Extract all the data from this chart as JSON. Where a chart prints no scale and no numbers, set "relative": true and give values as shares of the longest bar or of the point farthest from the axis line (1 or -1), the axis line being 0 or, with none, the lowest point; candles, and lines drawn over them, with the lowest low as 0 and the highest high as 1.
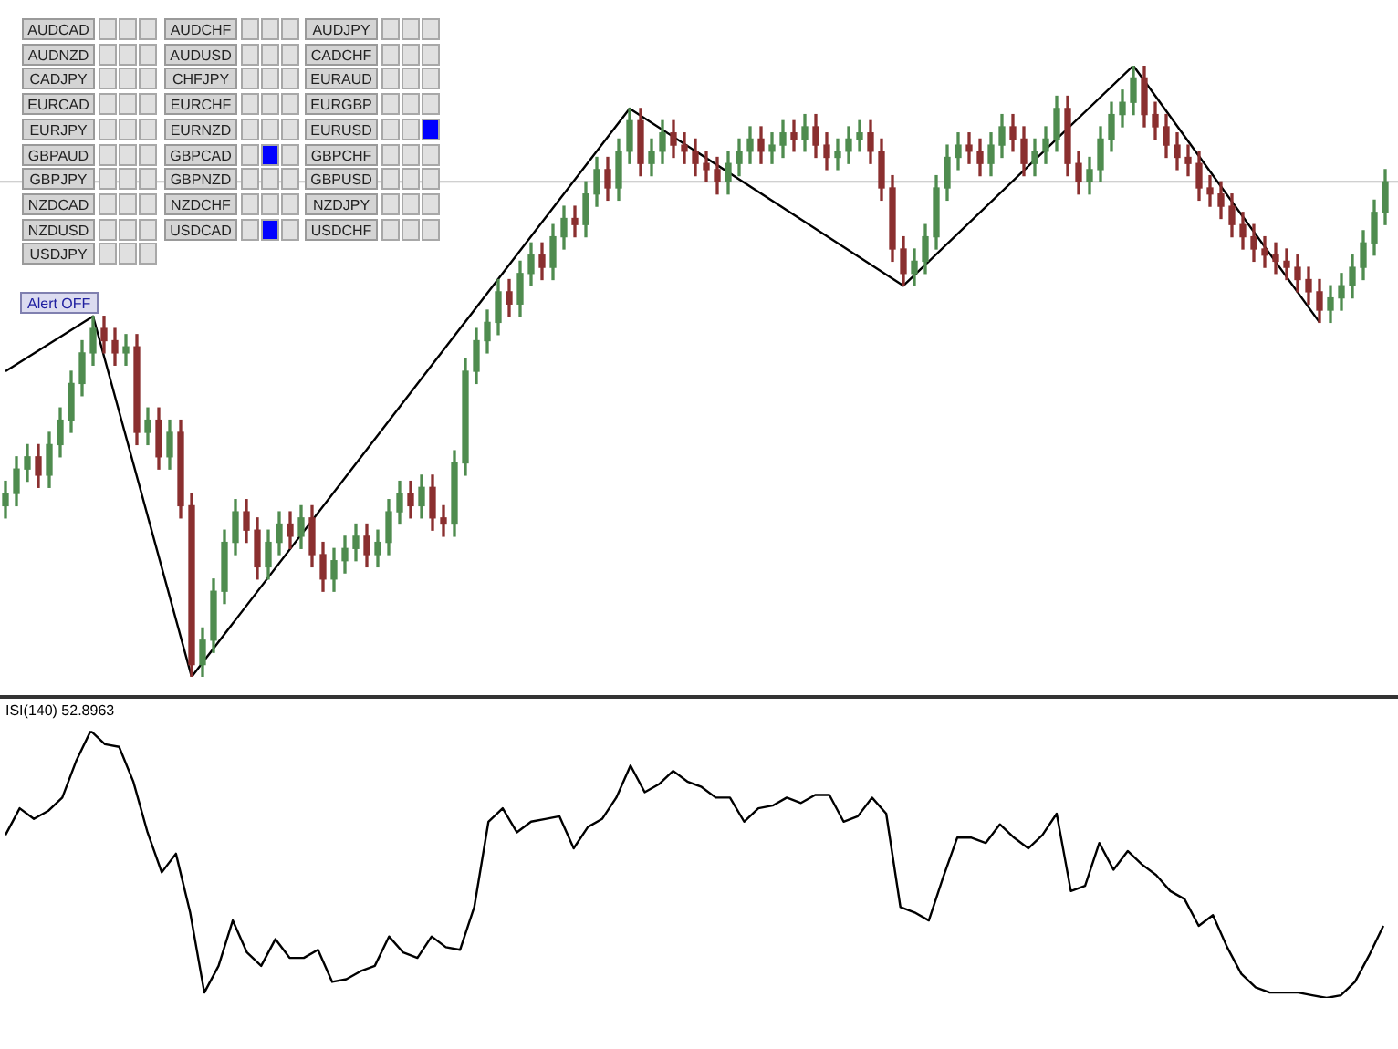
{
  "chart_data": [
    {
      "type": "candlestick",
      "relative": true,
      "categories": [
        null,
        null,
        null,
        null,
        null,
        null,
        null,
        null,
        null,
        null,
        null,
        null,
        null,
        null,
        null,
        null,
        null,
        null,
        null,
        null,
        null,
        null,
        null,
        null,
        null,
        null,
        null,
        null,
        null,
        null,
        null,
        null,
        null,
        null,
        null,
        null,
        null,
        null,
        null,
        null,
        null,
        null,
        null,
        null,
        null,
        null,
        null,
        null,
        null,
        null,
        null,
        null,
        null,
        null,
        null,
        null,
        null,
        null,
        null,
        null,
        null,
        null,
        null,
        null,
        null,
        null,
        null,
        null,
        null,
        null,
        null,
        null,
        null,
        null,
        null,
        null,
        null,
        null,
        null,
        null,
        null,
        null,
        null,
        null,
        null,
        null,
        null,
        null,
        null,
        null,
        null,
        null,
        null,
        null,
        null,
        null,
        null,
        null,
        null,
        null,
        null,
        null,
        null,
        null,
        null,
        null,
        null,
        null,
        null,
        null,
        null,
        null,
        null,
        null,
        null,
        null,
        null,
        null,
        null,
        null,
        null,
        null,
        null,
        null,
        null,
        null,
        null
      ],
      "ohlc": [
        [
          0.28,
          0.32,
          0.26,
          0.3
        ],
        [
          0.3,
          0.36,
          0.28,
          0.34
        ],
        [
          0.34,
          0.38,
          0.32,
          0.36
        ],
        [
          0.36,
          0.38,
          0.31,
          0.33
        ],
        [
          0.33,
          0.4,
          0.31,
          0.38
        ],
        [
          0.38,
          0.44,
          0.36,
          0.42
        ],
        [
          0.42,
          0.5,
          0.4,
          0.48
        ],
        [
          0.48,
          0.55,
          0.46,
          0.53
        ],
        [
          0.53,
          0.59,
          0.51,
          0.57
        ],
        [
          0.57,
          0.59,
          0.53,
          0.55
        ],
        [
          0.55,
          0.57,
          0.51,
          0.53
        ],
        [
          0.53,
          0.56,
          0.51,
          0.54
        ],
        [
          0.54,
          0.56,
          0.38,
          0.4
        ],
        [
          0.4,
          0.44,
          0.38,
          0.42
        ],
        [
          0.42,
          0.44,
          0.34,
          0.36
        ],
        [
          0.36,
          0.42,
          0.34,
          0.4
        ],
        [
          0.4,
          0.42,
          0.26,
          0.28
        ],
        [
          0.28,
          0.3,
          0.0,
          0.02
        ],
        [
          0.02,
          0.08,
          0.0,
          0.06
        ],
        [
          0.06,
          0.16,
          0.04,
          0.14
        ],
        [
          0.14,
          0.24,
          0.12,
          0.22
        ],
        [
          0.22,
          0.29,
          0.2,
          0.27
        ],
        [
          0.27,
          0.29,
          0.22,
          0.24
        ],
        [
          0.24,
          0.26,
          0.16,
          0.18
        ],
        [
          0.18,
          0.24,
          0.16,
          0.22
        ],
        [
          0.22,
          0.27,
          0.2,
          0.25
        ],
        [
          0.25,
          0.27,
          0.21,
          0.23
        ],
        [
          0.23,
          0.28,
          0.21,
          0.26
        ],
        [
          0.26,
          0.28,
          0.18,
          0.2
        ],
        [
          0.2,
          0.22,
          0.14,
          0.16
        ],
        [
          0.16,
          0.21,
          0.14,
          0.19
        ],
        [
          0.19,
          0.23,
          0.17,
          0.21
        ],
        [
          0.21,
          0.25,
          0.19,
          0.23
        ],
        [
          0.23,
          0.25,
          0.18,
          0.2
        ],
        [
          0.2,
          0.24,
          0.18,
          0.22
        ],
        [
          0.22,
          0.29,
          0.2,
          0.27
        ],
        [
          0.27,
          0.32,
          0.25,
          0.3
        ],
        [
          0.3,
          0.32,
          0.26,
          0.28
        ],
        [
          0.28,
          0.33,
          0.26,
          0.31
        ],
        [
          0.31,
          0.33,
          0.24,
          0.26
        ],
        [
          0.26,
          0.28,
          0.23,
          0.25
        ],
        [
          0.25,
          0.37,
          0.23,
          0.35
        ],
        [
          0.35,
          0.52,
          0.33,
          0.5
        ],
        [
          0.5,
          0.57,
          0.48,
          0.55
        ],
        [
          0.55,
          0.6,
          0.53,
          0.58
        ],
        [
          0.58,
          0.65,
          0.56,
          0.63
        ],
        [
          0.63,
          0.65,
          0.59,
          0.61
        ],
        [
          0.61,
          0.68,
          0.59,
          0.66
        ],
        [
          0.66,
          0.71,
          0.64,
          0.69
        ],
        [
          0.69,
          0.71,
          0.65,
          0.67
        ],
        [
          0.67,
          0.74,
          0.65,
          0.72
        ],
        [
          0.72,
          0.77,
          0.7,
          0.75
        ],
        [
          0.75,
          0.77,
          0.72,
          0.74
        ],
        [
          0.74,
          0.81,
          0.72,
          0.79
        ],
        [
          0.79,
          0.85,
          0.77,
          0.83
        ],
        [
          0.83,
          0.85,
          0.78,
          0.8
        ],
        [
          0.8,
          0.88,
          0.78,
          0.86
        ],
        [
          0.86,
          0.93,
          0.84,
          0.91
        ],
        [
          0.91,
          0.93,
          0.82,
          0.84
        ],
        [
          0.84,
          0.88,
          0.82,
          0.86
        ],
        [
          0.86,
          0.91,
          0.84,
          0.89
        ],
        [
          0.89,
          0.91,
          0.85,
          0.87
        ],
        [
          0.87,
          0.89,
          0.84,
          0.86
        ],
        [
          0.86,
          0.88,
          0.82,
          0.84
        ],
        [
          0.84,
          0.86,
          0.81,
          0.83
        ],
        [
          0.83,
          0.85,
          0.79,
          0.81
        ],
        [
          0.81,
          0.86,
          0.79,
          0.84
        ],
        [
          0.84,
          0.88,
          0.82,
          0.86
        ],
        [
          0.86,
          0.9,
          0.84,
          0.88
        ],
        [
          0.88,
          0.9,
          0.84,
          0.86
        ],
        [
          0.86,
          0.89,
          0.84,
          0.87
        ],
        [
          0.87,
          0.91,
          0.85,
          0.89
        ],
        [
          0.89,
          0.91,
          0.86,
          0.88
        ],
        [
          0.88,
          0.92,
          0.86,
          0.9
        ],
        [
          0.9,
          0.92,
          0.85,
          0.87
        ],
        [
          0.87,
          0.89,
          0.83,
          0.85
        ],
        [
          0.85,
          0.88,
          0.83,
          0.86
        ],
        [
          0.86,
          0.9,
          0.84,
          0.88
        ],
        [
          0.88,
          0.91,
          0.86,
          0.89
        ],
        [
          0.89,
          0.91,
          0.84,
          0.86
        ],
        [
          0.86,
          0.88,
          0.78,
          0.8
        ],
        [
          0.8,
          0.82,
          0.68,
          0.7
        ],
        [
          0.7,
          0.72,
          0.64,
          0.66
        ],
        [
          0.66,
          0.7,
          0.64,
          0.68
        ],
        [
          0.68,
          0.74,
          0.66,
          0.72
        ],
        [
          0.72,
          0.82,
          0.7,
          0.8
        ],
        [
          0.8,
          0.87,
          0.78,
          0.85
        ],
        [
          0.85,
          0.89,
          0.83,
          0.87
        ],
        [
          0.87,
          0.89,
          0.84,
          0.86
        ],
        [
          0.86,
          0.88,
          0.82,
          0.84
        ],
        [
          0.84,
          0.89,
          0.82,
          0.87
        ],
        [
          0.87,
          0.92,
          0.85,
          0.9
        ],
        [
          0.9,
          0.92,
          0.86,
          0.88
        ],
        [
          0.88,
          0.9,
          0.82,
          0.84
        ],
        [
          0.84,
          0.88,
          0.82,
          0.86
        ],
        [
          0.86,
          0.9,
          0.84,
          0.88
        ],
        [
          0.88,
          0.95,
          0.86,
          0.93
        ],
        [
          0.93,
          0.95,
          0.82,
          0.84
        ],
        [
          0.84,
          0.86,
          0.79,
          0.81
        ],
        [
          0.81,
          0.85,
          0.79,
          0.83
        ],
        [
          0.83,
          0.9,
          0.81,
          0.88
        ],
        [
          0.88,
          0.94,
          0.86,
          0.92
        ],
        [
          0.92,
          0.96,
          0.9,
          0.94
        ],
        [
          0.94,
          1.0,
          0.92,
          0.98
        ],
        [
          0.98,
          1.0,
          0.9,
          0.92
        ],
        [
          0.92,
          0.94,
          0.88,
          0.9
        ],
        [
          0.9,
          0.92,
          0.85,
          0.87
        ],
        [
          0.87,
          0.89,
          0.83,
          0.85
        ],
        [
          0.85,
          0.87,
          0.82,
          0.84
        ],
        [
          0.84,
          0.86,
          0.78,
          0.8
        ],
        [
          0.8,
          0.82,
          0.77,
          0.79
        ],
        [
          0.79,
          0.81,
          0.75,
          0.77
        ],
        [
          0.77,
          0.79,
          0.72,
          0.74
        ],
        [
          0.74,
          0.76,
          0.7,
          0.72
        ],
        [
          0.72,
          0.74,
          0.68,
          0.7
        ],
        [
          0.7,
          0.72,
          0.67,
          0.69
        ],
        [
          0.69,
          0.71,
          0.66,
          0.68
        ],
        [
          0.68,
          0.7,
          0.65,
          0.67
        ],
        [
          0.67,
          0.69,
          0.63,
          0.65
        ],
        [
          0.65,
          0.67,
          0.61,
          0.63
        ],
        [
          0.63,
          0.65,
          0.58,
          0.6
        ],
        [
          0.6,
          0.64,
          0.58,
          0.62
        ],
        [
          0.62,
          0.66,
          0.6,
          0.64
        ],
        [
          0.64,
          0.69,
          0.62,
          0.67
        ],
        [
          0.67,
          0.73,
          0.65,
          0.71
        ],
        [
          0.71,
          0.78,
          0.69,
          0.76
        ],
        [
          0.76,
          0.83,
          0.74,
          0.81
        ]
      ],
      "series": [
        {
          "type": "line",
          "color": "#000000",
          "values": [
            0.5,
            null,
            null,
            null,
            null,
            null,
            null,
            null,
            0.59,
            null,
            null,
            null,
            null,
            null,
            null,
            null,
            null,
            0,
            null,
            null,
            null,
            null,
            null,
            null,
            null,
            null,
            null,
            null,
            null,
            null,
            null,
            null,
            null,
            null,
            null,
            null,
            null,
            null,
            null,
            null,
            null,
            null,
            null,
            null,
            null,
            null,
            null,
            null,
            null,
            null,
            null,
            null,
            null,
            null,
            null,
            null,
            null,
            0.93,
            null,
            null,
            null,
            null,
            null,
            null,
            null,
            null,
            null,
            null,
            null,
            null,
            null,
            null,
            null,
            null,
            null,
            null,
            null,
            null,
            null,
            null,
            null,
            null,
            0.64,
            null,
            null,
            null,
            null,
            null,
            null,
            null,
            null,
            null,
            null,
            null,
            null,
            null,
            null,
            null,
            null,
            null,
            null,
            null,
            null,
            1.0,
            null,
            null,
            null,
            null,
            null,
            null,
            null,
            null,
            null,
            null,
            null,
            null,
            null,
            null,
            null,
            null,
            0.58,
            null,
            null,
            null,
            null,
            null,
            null
          ]
        }
      ],
      "ref_lines": [
        {
          "axis": "y",
          "value": 0.81,
          "color": "#c0c0c0"
        }
      ],
      "annotations": [
        "AUDCAD",
        "AUDCHF",
        "AUDJPY",
        "AUDNZD",
        "AUDUSD",
        "CADCHF",
        "CADJPY",
        "CHFJPY",
        "EURAUD",
        "EURCAD",
        "EURCHF",
        "EURGBP",
        "EURJPY",
        "EURNZD",
        "EURUSD",
        "GBPAUD",
        "GBPCAD",
        "GBPCHF",
        "GBPJPY",
        "GBPNZD",
        "GBPUSD",
        "NZDCAD",
        "NZDCHF",
        "NZDJPY",
        "NZDUSD",
        "USDCAD",
        "USDCHF",
        "USDJPY",
        "Alert OFF"
      ]
    },
    {
      "type": "line",
      "relative": true,
      "title": "ISI(140) 52.8963",
      "categories": [
        null,
        null,
        null,
        null,
        null,
        null,
        null,
        null,
        null,
        null,
        null,
        null,
        null,
        null,
        null,
        null,
        null,
        null,
        null,
        null,
        null,
        null,
        null,
        null,
        null,
        null,
        null,
        null,
        null,
        null,
        null,
        null,
        null,
        null,
        null,
        null,
        null,
        null,
        null,
        null,
        null,
        null,
        null,
        null,
        null,
        null,
        null,
        null,
        null,
        null,
        null,
        null,
        null,
        null,
        null,
        null,
        null,
        null,
        null,
        null,
        null,
        null,
        null,
        null,
        null,
        null,
        null,
        null,
        null,
        null,
        null,
        null,
        null,
        null,
        null,
        null,
        null,
        null,
        null,
        null,
        null,
        null,
        null,
        null,
        null,
        null,
        null,
        null,
        null,
        null,
        null,
        null,
        null,
        null,
        null,
        null,
        null,
        null
      ],
      "series": [
        {
          "color": "#000000",
          "values": [
            0.61,
            0.71,
            0.67,
            0.7,
            0.75,
            0.89,
            1.0,
            0.95,
            0.94,
            0.81,
            0.62,
            0.47,
            0.54,
            0.32,
            0.02,
            0.12,
            0.29,
            0.17,
            0.12,
            0.22,
            0.15,
            0.15,
            0.18,
            0.06,
            0.07,
            0.1,
            0.12,
            0.23,
            0.17,
            0.15,
            0.23,
            0.19,
            0.18,
            0.34,
            0.66,
            0.71,
            0.62,
            0.66,
            0.67,
            0.68,
            0.56,
            0.64,
            0.67,
            0.75,
            0.87,
            0.77,
            0.8,
            0.85,
            0.81,
            0.79,
            0.75,
            0.75,
            0.66,
            0.71,
            0.72,
            0.75,
            0.73,
            0.76,
            0.76,
            0.66,
            0.68,
            0.75,
            0.69,
            0.34,
            0.32,
            0.29,
            0.45,
            0.6,
            0.6,
            0.58,
            0.65,
            0.6,
            0.56,
            0.61,
            0.69,
            0.4,
            0.42,
            0.58,
            0.48,
            0.55,
            0.5,
            0.46,
            0.4,
            0.37,
            0.27,
            0.31,
            0.19,
            0.09,
            0.04,
            0.02,
            0.02,
            0.02,
            0.01,
            0.0,
            0.01,
            0.06,
            0.16,
            0.27
          ]
        }
      ]
    }
  ]
}
